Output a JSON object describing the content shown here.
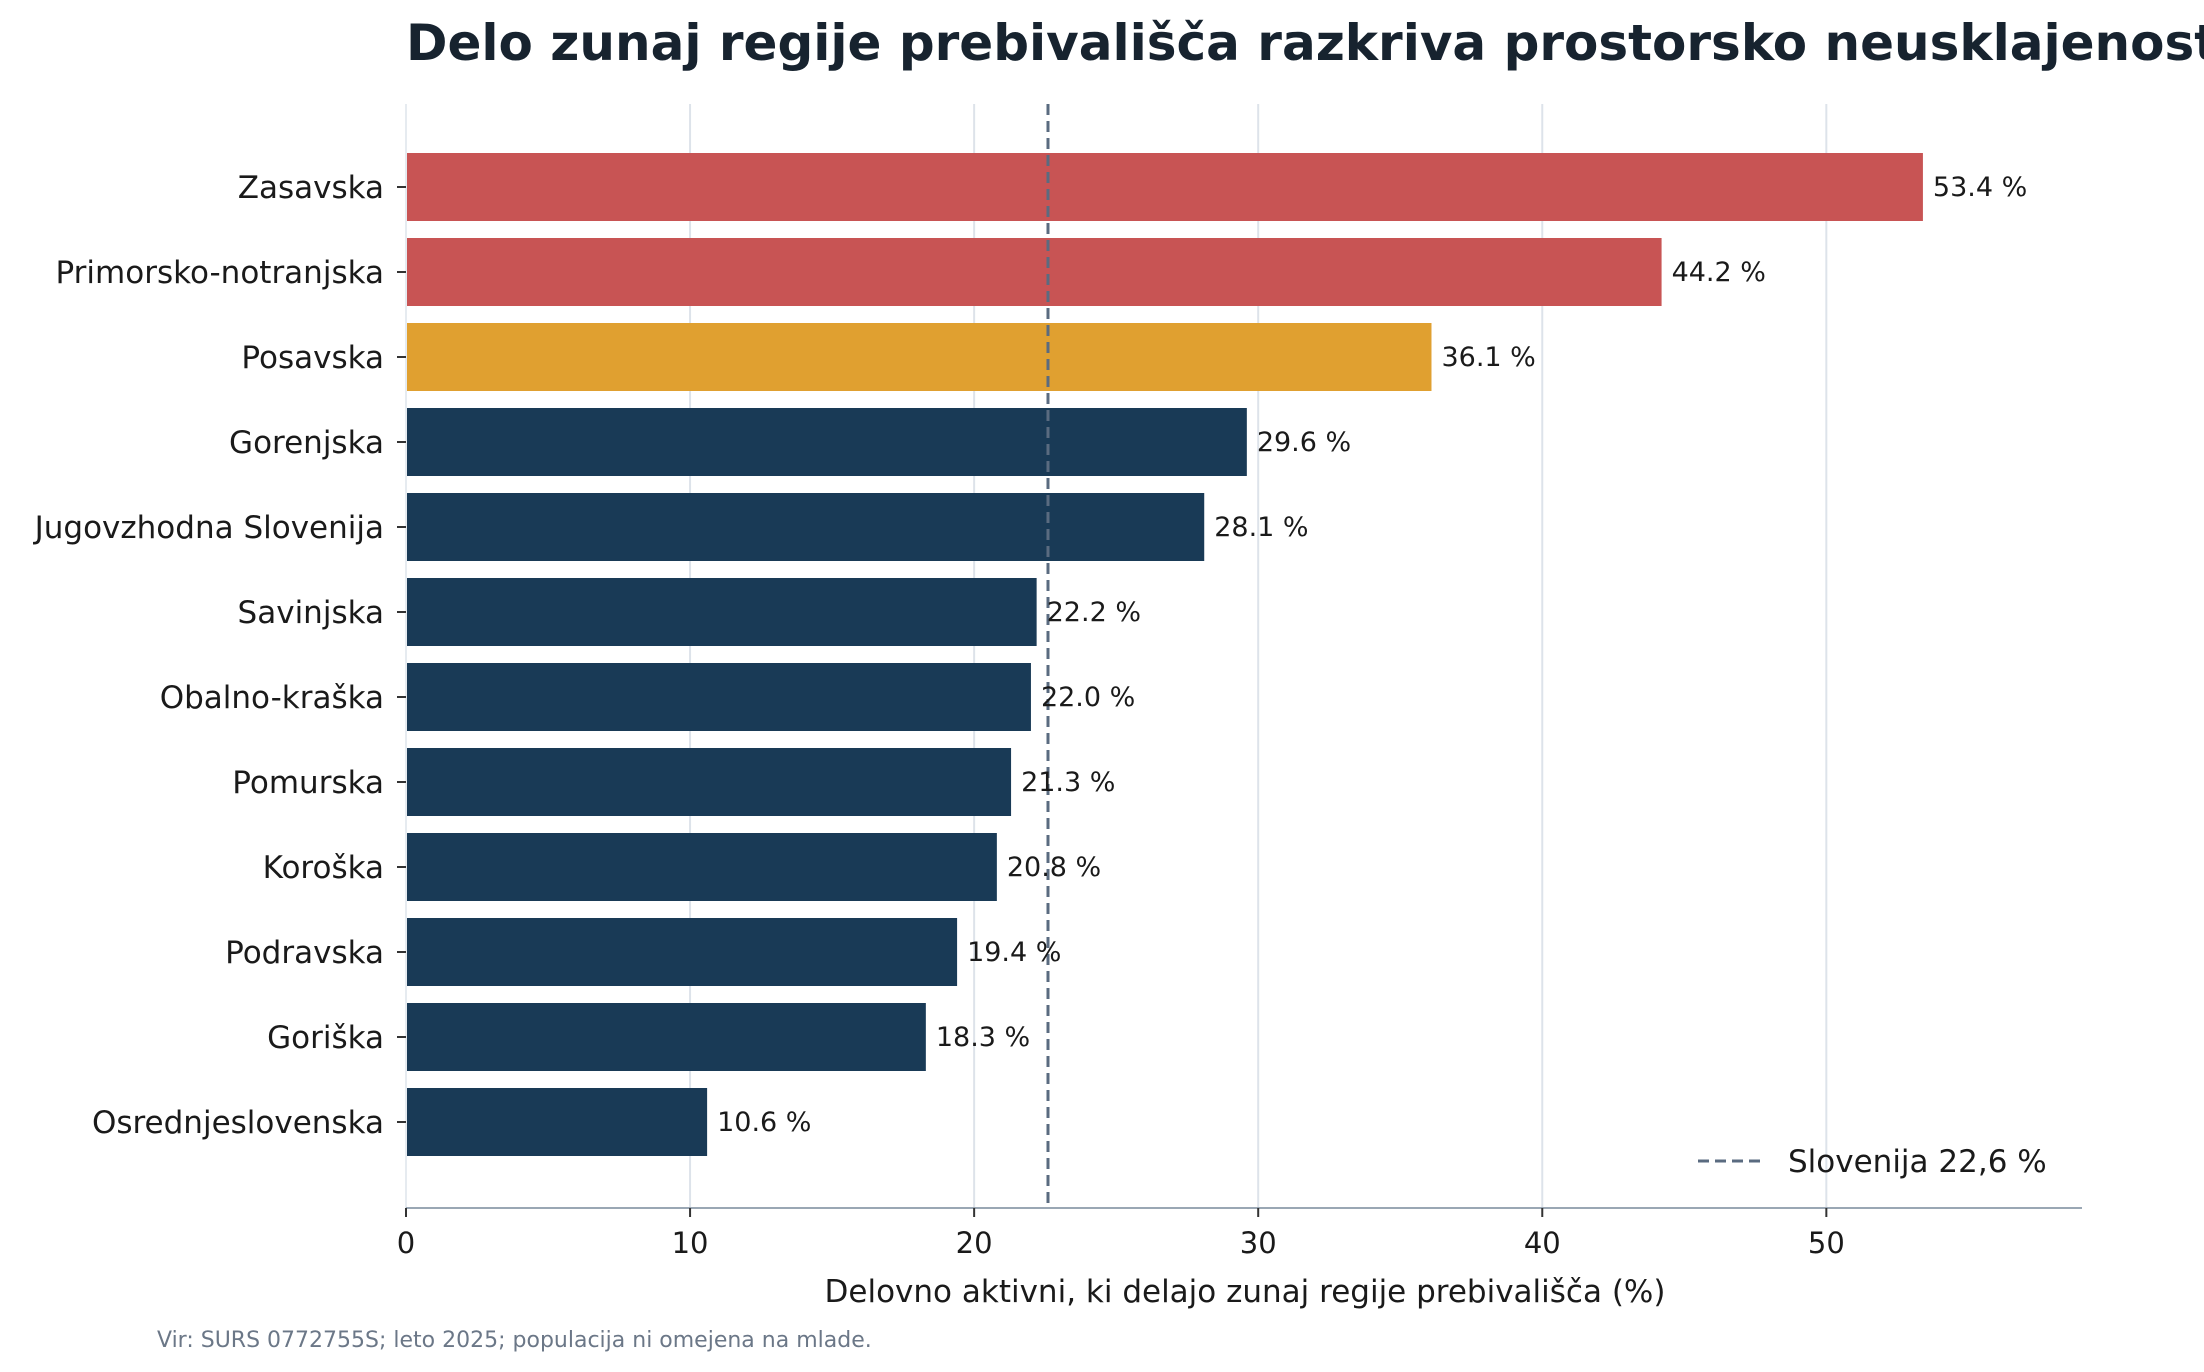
{
  "chart_data": {
    "type": "bar",
    "orientation": "horizontal",
    "title": "Delo zunaj regije prebivališča razkriva prostorsko neusklajenost",
    "xlabel": "Delovno aktivni, ki delajo zunaj regije prebivališča (%)",
    "ylabel": "",
    "xlim": [
      0,
      59
    ],
    "xticks": [
      0,
      10,
      20,
      30,
      40,
      50
    ],
    "grid": "vertical",
    "categories": [
      "Zasavska",
      "Primorsko-notranjska",
      "Posavska",
      "Gorenjska",
      "Jugovzhodna Slovenija",
      "Savinjska",
      "Obalno-kraška",
      "Pomurska",
      "Koroška",
      "Podravska",
      "Goriška",
      "Osrednjeslovenska"
    ],
    "values": [
      53.4,
      44.2,
      36.1,
      29.6,
      28.1,
      22.2,
      22.0,
      21.3,
      20.8,
      19.4,
      18.3,
      10.6
    ],
    "value_labels": [
      "53.4 %",
      "44.2 %",
      "36.1 %",
      "29.6 %",
      "28.1 %",
      "22.2 %",
      "22.0 %",
      "21.3 %",
      "20.8 %",
      "19.4 %",
      "18.3 %",
      "10.6 %"
    ],
    "bar_colors": [
      "#c85454",
      "#c85454",
      "#e0a030",
      "#193a56",
      "#193a56",
      "#193a56",
      "#193a56",
      "#193a56",
      "#193a56",
      "#193a56",
      "#193a56",
      "#193a56"
    ],
    "reference_line": {
      "value": 22.6,
      "label": "Slovenija 22,6 %",
      "color": "#5a6b80",
      "style": "dashed"
    },
    "legend_position": "bottom-right",
    "source": "Vir: SURS 0772755S; leto 2025; populacija ni omejena na mlade."
  }
}
